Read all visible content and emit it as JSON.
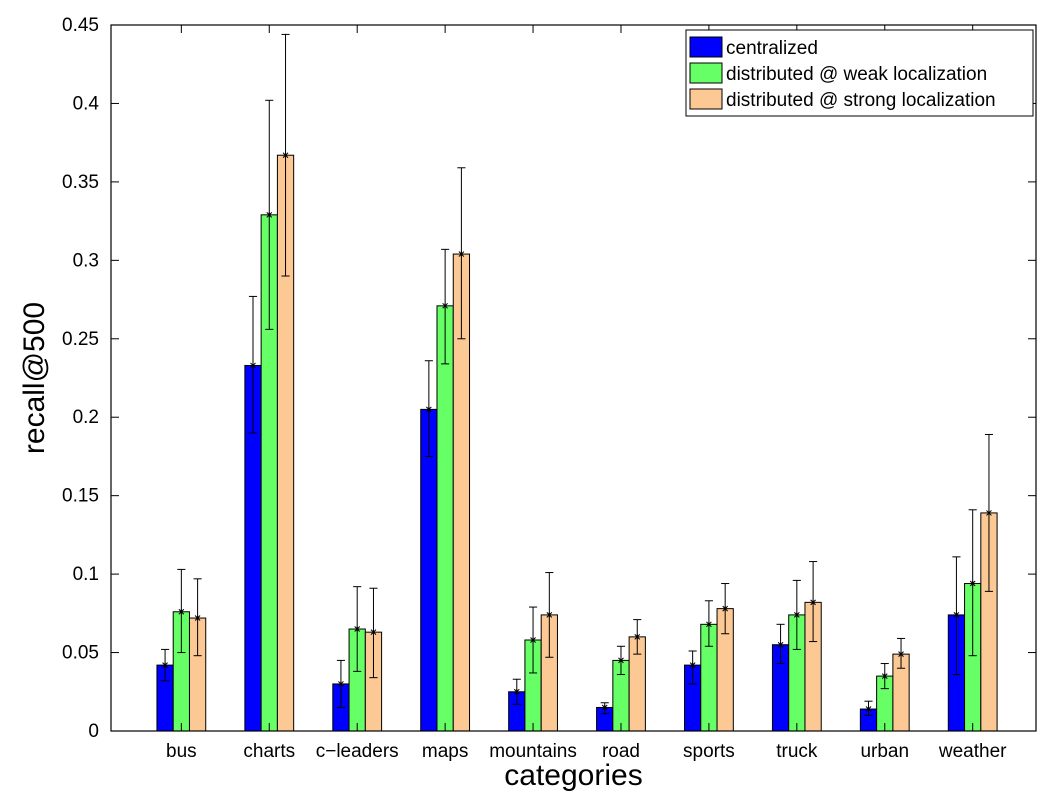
{
  "chart_data": {
    "type": "bar",
    "xlabel": "categories",
    "ylabel": "recall@500",
    "ylim": [
      0,
      0.45
    ],
    "yticks": [
      0,
      0.05,
      0.1,
      0.15,
      0.2,
      0.25,
      0.3,
      0.35,
      0.4,
      0.45
    ],
    "ytick_labels": [
      "0",
      "0.05",
      "0.1",
      "0.15",
      "0.2",
      "0.25",
      "0.3",
      "0.35",
      "0.4",
      "0.45"
    ],
    "grid": false,
    "legend_position": "top-right",
    "categories": [
      "bus",
      "charts",
      "c−leaders",
      "maps",
      "mountains",
      "road",
      "sports",
      "truck",
      "urban",
      "weather"
    ],
    "series": [
      {
        "name": "centralized",
        "color": "#0000ff",
        "values": [
          0.042,
          0.233,
          0.03,
          0.205,
          0.025,
          0.015,
          0.042,
          0.055,
          0.014,
          0.074
        ],
        "err_low": [
          0.032,
          0.19,
          0.015,
          0.175,
          0.017,
          0.011,
          0.03,
          0.043,
          0.01,
          0.036
        ],
        "err_high": [
          0.052,
          0.277,
          0.045,
          0.236,
          0.033,
          0.018,
          0.051,
          0.068,
          0.019,
          0.111
        ]
      },
      {
        "name": "distributed @ weak localization",
        "color": "#66ff66",
        "values": [
          0.076,
          0.329,
          0.065,
          0.271,
          0.058,
          0.045,
          0.068,
          0.074,
          0.035,
          0.094
        ],
        "err_low": [
          0.05,
          0.256,
          0.038,
          0.234,
          0.037,
          0.036,
          0.054,
          0.052,
          0.027,
          0.048
        ],
        "err_high": [
          0.103,
          0.402,
          0.092,
          0.307,
          0.079,
          0.054,
          0.083,
          0.096,
          0.043,
          0.141
        ]
      },
      {
        "name": "distributed @ strong localization",
        "color": "#fcc894",
        "values": [
          0.072,
          0.367,
          0.063,
          0.304,
          0.074,
          0.06,
          0.078,
          0.082,
          0.049,
          0.139
        ],
        "err_low": [
          0.048,
          0.29,
          0.034,
          0.25,
          0.047,
          0.049,
          0.062,
          0.057,
          0.04,
          0.089
        ],
        "err_high": [
          0.097,
          0.444,
          0.091,
          0.359,
          0.101,
          0.071,
          0.094,
          0.108,
          0.059,
          0.189
        ]
      }
    ]
  }
}
